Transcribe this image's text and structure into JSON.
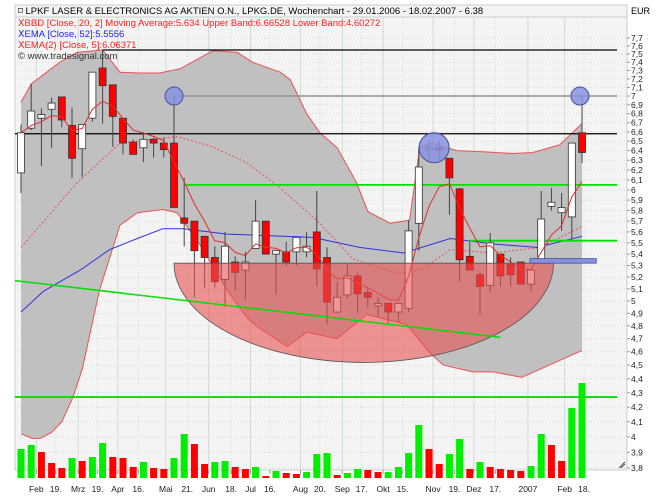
{
  "header": {
    "title": "LPKF LASER & ELECTRONICS AG AKTIEN O.N., LPKG.DE, Wochenchart - 29.01.2006 - 18.02.2007 - 6.38",
    "indicator_bb": "BBD [Close, 20, 2] Moving Average:5.634 Upper Band:6.66528 Lower Band:4.60272",
    "indicator_ema52": "EMA [Close, 52]:5.5556",
    "indicator_ema5": "EMA(2) [Close, 5]:6.06371",
    "watermark": "© www.tradesignal.com",
    "currency": "EUR"
  },
  "colors": {
    "up": "#ffffff",
    "down": "#ff0000",
    "vol_up": "#00ee00",
    "vol_down": "#ff0000",
    "band_fill": "#c0c0c0",
    "band_line": "#f05050",
    "ema52": "#3030e0",
    "support": "#00e000",
    "ellipse": "#e85050",
    "circle": "#8890e0"
  },
  "chart_data": {
    "type": "candlestick",
    "scale": "log",
    "ylim": [
      3.8,
      7.7
    ],
    "y_ticks": [
      "7,7",
      "7,6",
      "7,5",
      "7,4",
      "7,3",
      "7,2",
      "7,1",
      "7",
      "6,9",
      "6,8",
      "6,7",
      "6,6",
      "6,5",
      "6,4",
      "6,3",
      "6,2",
      "6,1",
      "6",
      "5,9",
      "5,8",
      "5,7",
      "5,6",
      "5,5",
      "5,4",
      "5,3",
      "5,2",
      "5,1",
      "5",
      "4,9",
      "4,8",
      "4,7",
      "4,6",
      "4,5",
      "4,4",
      "4,3",
      "4,2",
      "4,1",
      "4",
      "3,9",
      "3,8"
    ],
    "x_ticks": [
      {
        "label": "Feb",
        "week": 1.5
      },
      {
        "label": "19.",
        "week": 3.4
      },
      {
        "label": "Mrz",
        "week": 5.6
      },
      {
        "label": "19.",
        "week": 7.5
      },
      {
        "label": "Apr",
        "week": 9.5
      },
      {
        "label": "16.",
        "week": 11.5
      },
      {
        "label": "Mai",
        "week": 14.2
      },
      {
        "label": "21.",
        "week": 16.3
      },
      {
        "label": "Jun",
        "week": 18.4
      },
      {
        "label": "18.",
        "week": 20.6
      },
      {
        "label": "Jul",
        "week": 22.5
      },
      {
        "label": "16.",
        "week": 24.4
      },
      {
        "label": "Aug",
        "week": 27.4
      },
      {
        "label": "20.",
        "week": 29.3
      },
      {
        "label": "Sep",
        "week": 31.5
      },
      {
        "label": "17.",
        "week": 33.4
      },
      {
        "label": "Okt",
        "week": 35.5
      },
      {
        "label": "15.",
        "week": 37.4
      },
      {
        "label": "Nov",
        "week": 40.4
      },
      {
        "label": "19.",
        "week": 42.5
      },
      {
        "label": "Dez",
        "week": 44.4
      },
      {
        "label": "17.",
        "week": 46.5
      },
      {
        "label": "2007",
        "week": 49.7
      },
      {
        "label": "Feb",
        "week": 53.3
      },
      {
        "label": "18.",
        "week": 55.2
      }
    ],
    "ohlc": [
      [
        6.17,
        6.68,
        5.97,
        6.59
      ],
      [
        6.64,
        7.14,
        6.62,
        6.83
      ],
      [
        6.75,
        6.86,
        6.24,
        6.79
      ],
      [
        6.85,
        6.98,
        6.43,
        6.92
      ],
      [
        6.99,
        6.99,
        6.65,
        6.73
      ],
      [
        6.67,
        6.87,
        6.12,
        6.32
      ],
      [
        6.42,
        6.68,
        6.13,
        6.68
      ],
      [
        6.75,
        7.28,
        6.71,
        7.28
      ],
      [
        7.33,
        7.55,
        6.69,
        7.12
      ],
      [
        7.13,
        7.13,
        6.44,
        6.77
      ],
      [
        6.75,
        6.75,
        6.36,
        6.48
      ],
      [
        6.49,
        6.52,
        6.36,
        6.36
      ],
      [
        6.43,
        6.6,
        6.28,
        6.52
      ],
      [
        6.52,
        6.54,
        6.33,
        6.48
      ],
      [
        6.48,
        6.54,
        6.33,
        6.41
      ],
      [
        6.48,
        6.99,
        5.83,
        5.83
      ],
      [
        5.73,
        6.12,
        5.47,
        5.68
      ],
      [
        5.7,
        5.7,
        5.03,
        5.43
      ],
      [
        5.56,
        5.56,
        5.11,
        5.37
      ],
      [
        5.37,
        5.47,
        5.11,
        5.16
      ],
      [
        5.18,
        5.6,
        4.95,
        5.47
      ],
      [
        5.33,
        5.38,
        5.09,
        5.24
      ],
      [
        5.26,
        5.42,
        5.01,
        5.33
      ],
      [
        5.45,
        5.9,
        5.45,
        5.7
      ],
      [
        5.7,
        5.7,
        5.4,
        5.4
      ],
      [
        5.4,
        5.43,
        5.05,
        5.43
      ],
      [
        5.42,
        5.51,
        5.29,
        5.33
      ],
      [
        5.42,
        5.55,
        5.3,
        5.55
      ],
      [
        5.42,
        5.6,
        5.37,
        5.47
      ],
      [
        5.6,
        5.99,
        5.12,
        5.27
      ],
      [
        5.37,
        5.46,
        4.81,
        4.99
      ],
      [
        4.91,
        5.16,
        4.91,
        5.03
      ],
      [
        5.05,
        5.31,
        5.02,
        5.21
      ],
      [
        5.21,
        5.24,
        4.9,
        5.06
      ],
      [
        5.07,
        5.11,
        4.95,
        5.03
      ],
      [
        4.96,
        5.03,
        4.87,
        4.98
      ],
      [
        4.98,
        4.98,
        4.82,
        4.91
      ],
      [
        4.91,
        4.98,
        4.83,
        4.98
      ],
      [
        4.94,
        5.71,
        4.91,
        5.61
      ],
      [
        5.68,
        6.44,
        5.43,
        6.23
      ],
      [
        6.41,
        6.51,
        6.3,
        6.43
      ],
      [
        6.43,
        6.51,
        6.3,
        6.41
      ],
      [
        6.32,
        6.32,
        5.76,
        6.12
      ],
      [
        6.01,
        6.02,
        5.16,
        5.35
      ],
      [
        5.38,
        5.51,
        5.26,
        5.26
      ],
      [
        5.22,
        5.24,
        4.89,
        5.12
      ],
      [
        5.13,
        5.59,
        5.07,
        5.5
      ],
      [
        5.4,
        5.4,
        5.12,
        5.21
      ],
      [
        5.31,
        5.37,
        5.12,
        5.22
      ],
      [
        5.33,
        5.33,
        5.14,
        5.14
      ],
      [
        5.14,
        5.26,
        5.08,
        5.26
      ],
      [
        5.35,
        5.99,
        5.35,
        5.72
      ],
      [
        5.84,
        6.02,
        5.8,
        5.88
      ],
      [
        5.78,
        5.97,
        5.61,
        5.83
      ],
      [
        5.74,
        6.48,
        5.53,
        6.48
      ],
      [
        6.59,
        7.0,
        6.27,
        6.38
      ]
    ],
    "volume_relative": [
      29,
      33,
      26,
      15,
      10,
      20,
      17,
      21,
      35,
      21,
      20,
      11,
      16,
      10,
      9,
      20,
      44,
      34,
      14,
      16,
      17,
      11,
      9,
      11,
      2,
      7,
      5,
      4,
      6,
      24,
      25,
      3,
      5,
      9,
      8,
      6,
      6,
      11,
      25,
      53,
      29,
      14,
      24,
      39,
      9,
      16,
      11,
      9,
      8,
      7,
      12,
      44,
      33,
      17,
      70,
      95
    ],
    "volume_direction": "GGRRRGRGGRRRGRRGGRRGGRRGRGRRGGGRGGRRGGGGRRGGRGRRRRGGRRGG",
    "bollinger_upper": [
      [
        0,
        6.93
      ],
      [
        1,
        7.14
      ],
      [
        3.8,
        7.4
      ],
      [
        5.5,
        7.52
      ],
      [
        8,
        7.55
      ],
      [
        9.7,
        7.28
      ],
      [
        11.7,
        7.27
      ],
      [
        13.6,
        7.27
      ],
      [
        15.6,
        7.32
      ],
      [
        18.8,
        7.54
      ],
      [
        21.2,
        7.52
      ],
      [
        22.7,
        7.4
      ],
      [
        25.4,
        7.28
      ],
      [
        26.4,
        7.19
      ],
      [
        28,
        6.8
      ],
      [
        29.3,
        6.59
      ],
      [
        31,
        6.43
      ],
      [
        32.9,
        6.07
      ],
      [
        34,
        5.79
      ],
      [
        36.2,
        5.68
      ],
      [
        38.1,
        5.71
      ],
      [
        39.1,
        6.44
      ],
      [
        40.4,
        6.48
      ],
      [
        42.7,
        6.4
      ],
      [
        45,
        6.39
      ],
      [
        48.2,
        6.37
      ],
      [
        50.2,
        6.38
      ],
      [
        52.8,
        6.46
      ],
      [
        55,
        6.69
      ]
    ],
    "bollinger_lower": [
      [
        0,
        4.02
      ],
      [
        1.1,
        3.99
      ],
      [
        1.9,
        3.99
      ],
      [
        3,
        4.03
      ],
      [
        4,
        4.1
      ],
      [
        5.1,
        4.27
      ],
      [
        6,
        4.47
      ],
      [
        7.7,
        5.09
      ],
      [
        9.7,
        5.66
      ],
      [
        11.4,
        5.78
      ],
      [
        13.9,
        5.81
      ],
      [
        15.3,
        5.78
      ],
      [
        17.5,
        5.49
      ],
      [
        20.2,
        5.09
      ],
      [
        22.2,
        4.86
      ],
      [
        23.4,
        4.78
      ],
      [
        26.1,
        4.64
      ],
      [
        28,
        4.75
      ],
      [
        31,
        4.7
      ],
      [
        33.9,
        4.89
      ],
      [
        37.8,
        4.81
      ],
      [
        40.1,
        4.59
      ],
      [
        41.4,
        4.5
      ],
      [
        44.3,
        4.45
      ],
      [
        46.3,
        4.45
      ],
      [
        49.1,
        4.41
      ],
      [
        51.2,
        4.48
      ],
      [
        55,
        4.61
      ]
    ],
    "bollinger_mid": [
      [
        0,
        5.46
      ],
      [
        5.5,
        6.07
      ],
      [
        9.7,
        6.48
      ],
      [
        15.3,
        6.55
      ],
      [
        18.8,
        6.44
      ],
      [
        22.2,
        6.27
      ],
      [
        25.4,
        6.02
      ],
      [
        29.3,
        5.68
      ],
      [
        32.5,
        5.36
      ],
      [
        36.9,
        5.23
      ],
      [
        39.4,
        5.27
      ],
      [
        42.1,
        5.44
      ],
      [
        46.3,
        5.41
      ],
      [
        50.9,
        5.46
      ],
      [
        55,
        5.65
      ]
    ],
    "ema52": [
      [
        0,
        4.91
      ],
      [
        2.2,
        5.08
      ],
      [
        5.8,
        5.26
      ],
      [
        8.7,
        5.44
      ],
      [
        11.4,
        5.54
      ],
      [
        13.9,
        5.63
      ],
      [
        15.9,
        5.63
      ],
      [
        20.2,
        5.58
      ],
      [
        28.6,
        5.55
      ],
      [
        33.2,
        5.46
      ],
      [
        37.5,
        5.41
      ],
      [
        42.1,
        5.54
      ],
      [
        46.3,
        5.49
      ],
      [
        50.6,
        5.46
      ],
      [
        55,
        5.56
      ]
    ],
    "annotations": {
      "resistance_lines": [
        {
          "price": 7.55,
          "from": 8
        },
        {
          "price": 6.58,
          "from": -0.6
        }
      ],
      "gray_line": {
        "price": 7.0,
        "from": 15
      },
      "support_lines": [
        {
          "price": 6.05,
          "from": 16.2
        },
        {
          "price": 5.52,
          "from": 44
        },
        {
          "price": 4.27,
          "from": -0.6
        }
      ],
      "trendline": [
        [
          -0.6,
          5.17
        ],
        [
          47,
          4.71
        ]
      ],
      "bowl": {
        "center_week": 33.6,
        "half_width_weeks": 18.6,
        "top_price": 5.32,
        "bottom_price": 4.52
      },
      "circles": [
        {
          "week": 15,
          "price": 7.0
        },
        {
          "week": 40.5,
          "price": 6.43
        },
        {
          "week": 54.8,
          "price": 7.0
        }
      ],
      "box": {
        "from": 49.9,
        "to": 56.4,
        "high": 5.36,
        "low": 5.32
      }
    }
  }
}
